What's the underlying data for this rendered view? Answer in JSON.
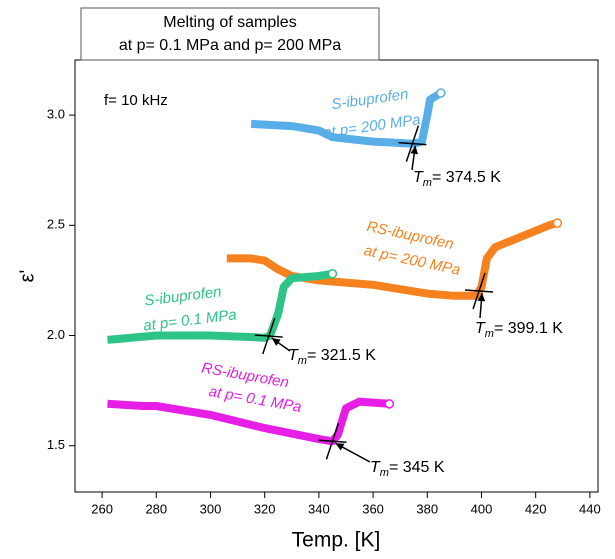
{
  "chart_data": {
    "type": "line",
    "title_lines": [
      "Melting of samples",
      "at p= 0.1 MPa and p= 200 MPa"
    ],
    "annotation": "f= 10 kHz",
    "xlabel": "Temp. [K]",
    "ylabel": "ε'",
    "xlim": [
      250,
      443
    ],
    "ylim": [
      1.29,
      3.25
    ],
    "xticks": [
      260,
      280,
      300,
      320,
      340,
      360,
      380,
      400,
      420,
      440
    ],
    "yticks": [
      {
        "value": 1.5,
        "label": "1.5"
      },
      {
        "value": 2.0,
        "label": "2.0"
      },
      {
        "value": 2.5,
        "label": "2.5"
      },
      {
        "value": 3.0,
        "label": "3.0"
      }
    ],
    "tm_symbol": "T",
    "tm_subscript": "m",
    "series": [
      {
        "name": "S-ibuprofen",
        "pressure_label": "at p= 200 MPa",
        "color": "#5aaee8",
        "x": [
          315,
          330,
          340,
          345,
          360,
          375,
          378,
          380,
          381,
          385
        ],
        "values": [
          2.96,
          2.95,
          2.93,
          2.9,
          2.88,
          2.87,
          2.88,
          3.0,
          3.07,
          3.1
        ],
        "tm": 374.5,
        "tm_label": "= 374.5 K"
      },
      {
        "name": "RS-ibuprofen",
        "pressure_label": "at p= 200 MPa",
        "color": "#f5821f",
        "x": [
          306,
          315,
          320,
          325,
          330,
          340,
          350,
          360,
          370,
          380,
          390,
          398,
          400,
          402,
          405,
          415,
          425,
          428
        ],
        "values": [
          2.35,
          2.35,
          2.34,
          2.3,
          2.27,
          2.25,
          2.24,
          2.23,
          2.21,
          2.19,
          2.18,
          2.18,
          2.22,
          2.35,
          2.4,
          2.45,
          2.5,
          2.51
        ],
        "tm": 399.1,
        "tm_label": "= 399.1 K"
      },
      {
        "name": "S-ibuprofen",
        "pressure_label": "at p= 0.1 MPa",
        "color": "#2ec489",
        "x": [
          262,
          280,
          300,
          320,
          322,
          325,
          327,
          330,
          340,
          345
        ],
        "values": [
          1.98,
          2.0,
          2.0,
          1.99,
          2.0,
          2.1,
          2.22,
          2.26,
          2.27,
          2.28
        ],
        "tm": 321.5,
        "tm_label": "= 321.5 K"
      },
      {
        "name": "RS-ibuprofen",
        "pressure_label": "at p= 0.1 MPa",
        "color": "#e61ee6",
        "x": [
          262,
          275,
          280,
          300,
          320,
          340,
          345,
          347,
          350,
          355,
          366
        ],
        "values": [
          1.69,
          1.68,
          1.68,
          1.64,
          1.58,
          1.53,
          1.52,
          1.55,
          1.67,
          1.7,
          1.69
        ],
        "tm": 345,
        "tm_label": "= 345 K"
      }
    ]
  }
}
